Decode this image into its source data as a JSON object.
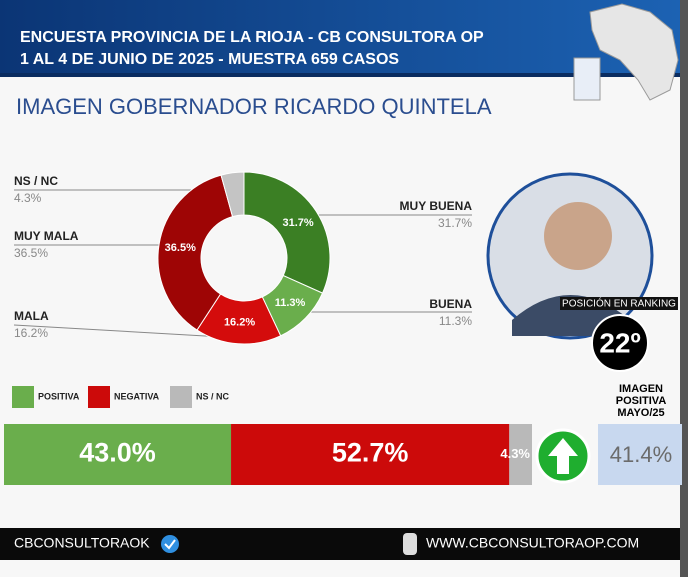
{
  "header": {
    "line1": "ENCUESTA PROVINCIA DE LA RIOJA - CB CONSULTORA OP",
    "line2": "1 AL 4 DE JUNIO DE 2025 - MUESTRA 659 CASOS"
  },
  "chart_data": [
    {
      "type": "pie",
      "title": "IMAGEN GOBERNADOR  RICARDO QUINTELA",
      "categories": [
        "MUY BUENA",
        "BUENA",
        "MALA",
        "MUY MALA",
        "NS / NC"
      ],
      "values": [
        31.7,
        11.3,
        16.2,
        36.5,
        4.3
      ],
      "value_labels": [
        "31.7%",
        "11.3%",
        "16.2%",
        "36.5%",
        "4.3%"
      ],
      "colors": [
        "#3b7f24",
        "#6aae4c",
        "#d40c0c",
        "#9e0505",
        "#c4c4c4"
      ]
    },
    {
      "type": "stacked-bar",
      "xlim": [
        0,
        100
      ],
      "series": [
        {
          "name": "POSITIVA",
          "color": "#6aae4c",
          "values": [
            43.0
          ],
          "value_labels": [
            "43.0%"
          ]
        },
        {
          "name": "NEGATIVA",
          "color": "#cc0a0a",
          "values": [
            52.7
          ],
          "value_labels": [
            "52.7%"
          ]
        },
        {
          "name": "NS / NC",
          "color": "#b9b9b9",
          "values": [
            4.3
          ],
          "value_labels": [
            "4.3%"
          ]
        }
      ]
    }
  ],
  "comparison": {
    "label_lines": [
      "IMAGEN",
      "POSITIVA",
      "MAYO/25"
    ],
    "value": "41.4%"
  },
  "ranking": {
    "label": "POSICIÓN EN RANKING",
    "position": "22º"
  },
  "footer": {
    "account": "CBCONSULTORAOK",
    "website": "WWW.CBCONSULTORAOP.COM"
  }
}
